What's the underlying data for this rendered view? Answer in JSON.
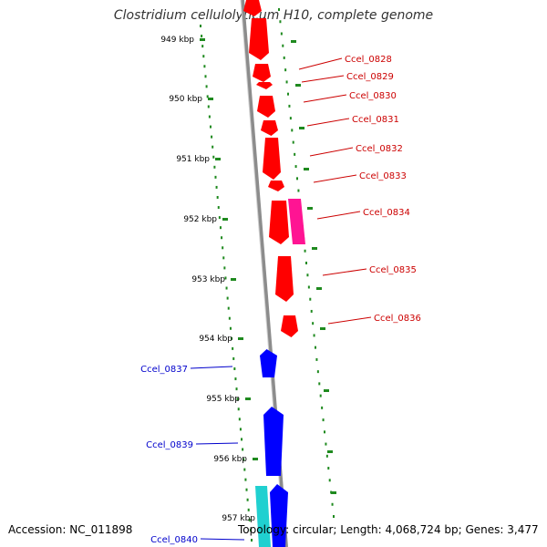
{
  "title": "Clostridium cellulolyticum H10, complete genome",
  "footer": {
    "accession": "Accession: NC_011898",
    "info": "Topology: circular; Length: 4,068,724 bp; Genes: 3,477"
  },
  "colors": {
    "backbone": "#8c8c8c",
    "ticks": "#1f8a1f",
    "forward_gene": "#ff0000",
    "forward_label": "#cc0000",
    "reverse_gene": "#0000ff",
    "reverse_label": "#0000cc",
    "magenta_gene": "#ff1493",
    "cyan_gene": "#20d0d0"
  },
  "scale": {
    "unit": "kbp",
    "ticks": [
      "949 kbp",
      "950 kbp",
      "951 kbp",
      "952 kbp",
      "953 kbp",
      "954 kbp",
      "955 kbp",
      "956 kbp",
      "957 kbp"
    ]
  },
  "genes": {
    "forward": [
      "Ccel_0828",
      "Ccel_0829",
      "Ccel_0830",
      "Ccel_0831",
      "Ccel_0832",
      "Ccel_0833",
      "Ccel_0834",
      "Ccel_0835",
      "Ccel_0836"
    ],
    "reverse": [
      "Ccel_0837",
      "Ccel_0839",
      "Ccel_0840"
    ]
  }
}
